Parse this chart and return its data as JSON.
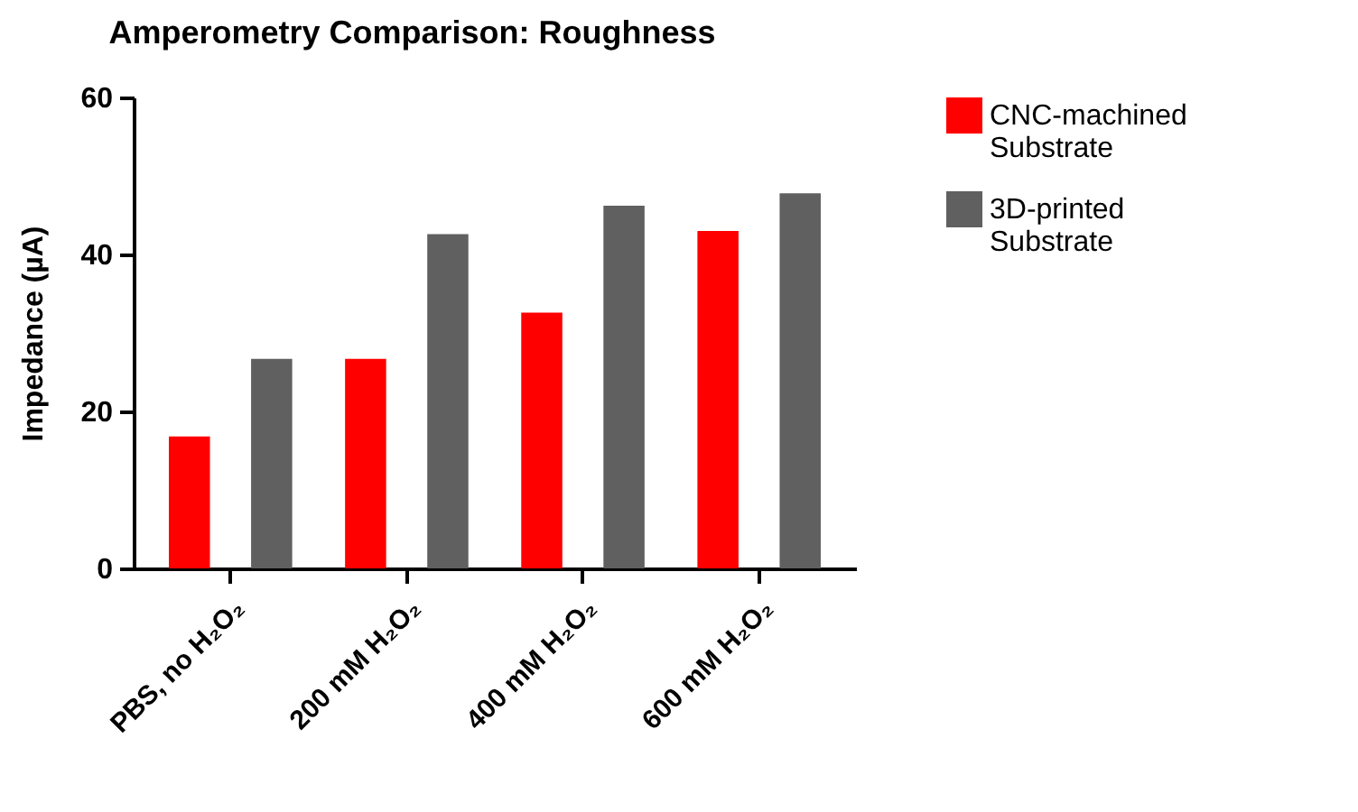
{
  "chart_data": {
    "type": "bar",
    "title": "Amperometry Comparison: Roughness",
    "ylabel": "Impedance (µA)",
    "categories": [
      "PBS, no H₂O₂",
      "200 mM H₂O₂",
      "400 mM H₂O₂",
      "600 mM H₂O₂"
    ],
    "series": [
      {
        "name": "CNC-machined Substrate",
        "color": "#ff0000",
        "values": [
          16.8,
          26.7,
          32.6,
          43.0
        ]
      },
      {
        "name": "3D-printed Substrate",
        "color": "#606060",
        "values": [
          26.7,
          42.6,
          46.2,
          47.8
        ]
      }
    ],
    "ylim": [
      0,
      60
    ],
    "yticks": [
      0,
      20,
      40,
      60
    ],
    "grid": false,
    "legend": "top right"
  }
}
